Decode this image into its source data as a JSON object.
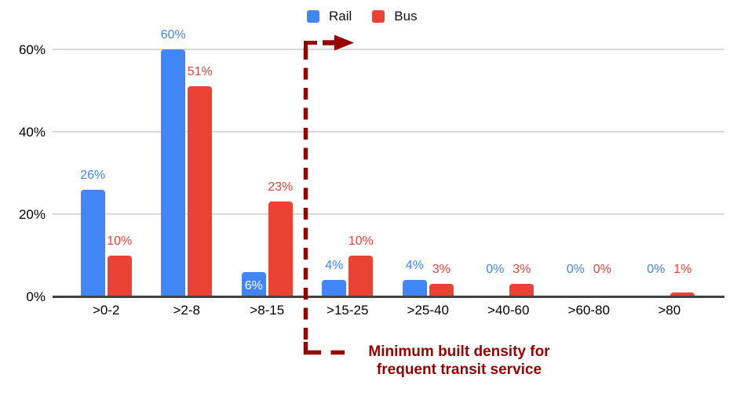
{
  "chart_data": {
    "type": "bar",
    "title": "",
    "categories": [
      ">0-2",
      ">2-8",
      ">8-15",
      ">15-25",
      ">25-40",
      ">40-60",
      ">60-80",
      ">80"
    ],
    "series": [
      {
        "name": "Rail",
        "color": "#4285F4",
        "values": [
          26,
          60,
          6,
          4,
          4,
          0,
          0,
          0
        ]
      },
      {
        "name": "Bus",
        "color": "#EA4335",
        "values": [
          10,
          51,
          23,
          10,
          3,
          3,
          0,
          1
        ]
      }
    ],
    "value_suffix": "%",
    "xlabel": "",
    "ylabel": "",
    "y_ticks": [
      0,
      20,
      40,
      60
    ],
    "y_tick_labels": [
      "0%",
      "20%",
      "40%",
      "60%"
    ],
    "ylim": [
      0,
      65
    ],
    "grid": true,
    "legend_position": "top-center",
    "label_placement_note": "data labels above bars; Rail 6% label white inside bar",
    "annotation": {
      "line1": "Minimum built density for",
      "line2": "frequent transit service",
      "color": "#990000",
      "style": "vertical dashed line with right arrow at top, between >8-15 and >15-25"
    }
  },
  "colors": {
    "rail": "#4285F4",
    "bus": "#EA4335",
    "annotation": "#990000",
    "gridline": "#d9d9d9",
    "axis": "#424242",
    "text": "#000000"
  },
  "legend": {
    "items": [
      {
        "label": "Rail",
        "color": "#4285F4"
      },
      {
        "label": "Bus",
        "color": "#EA4335"
      }
    ]
  }
}
